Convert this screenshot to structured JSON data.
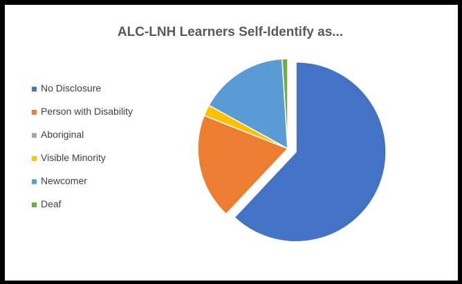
{
  "chart_data": {
    "type": "pie",
    "title": "ALC-LNH Learners Self-Identify as...",
    "categories": [
      "No Disclosure",
      "Person with Disability",
      "Aboriginal",
      "Visible Minority",
      "Newcomer",
      "Deaf"
    ],
    "values": [
      62,
      19,
      0,
      2,
      16,
      1
    ],
    "colors": [
      "#4472c4",
      "#ed7d31",
      "#a5a5a5",
      "#ffc000",
      "#5b9bd5",
      "#70ad47"
    ],
    "exploded": [
      "No Disclosure"
    ],
    "legend": "left"
  }
}
